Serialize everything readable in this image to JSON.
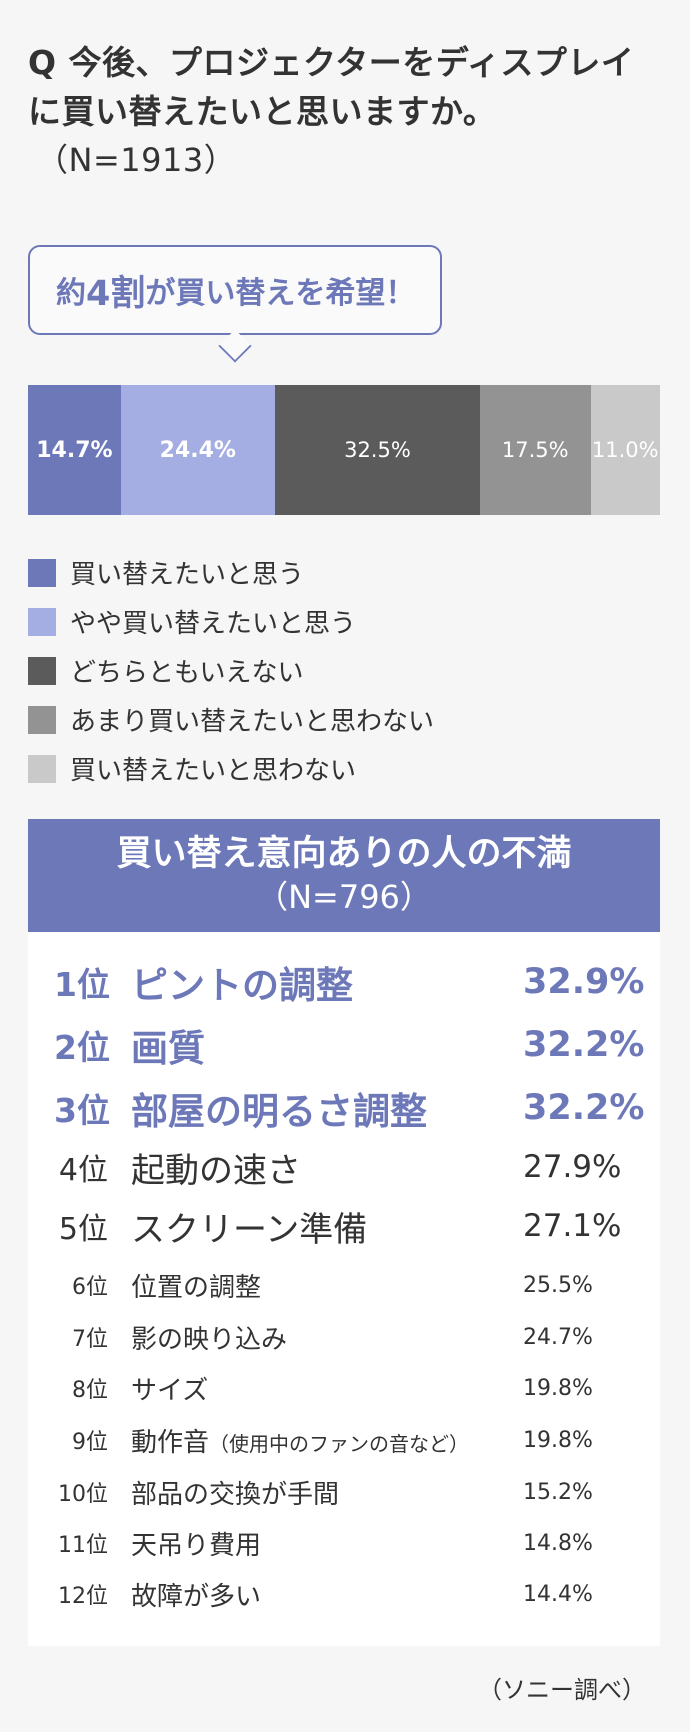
{
  "question": {
    "text": "Q 今後、プロジェクターをディスプレイに買い替えたいと思いますか。",
    "n": "（N=1913）"
  },
  "callout": {
    "pre": "約",
    "big": "4割",
    "post": "が買い替えを希望！"
  },
  "colors": {
    "accent": "#6d78b9",
    "s1": "#6d78b9",
    "s2": "#a4aee2",
    "s3": "#5b5b5b",
    "s4": "#939393",
    "s5": "#c9c9c9"
  },
  "chart_data": {
    "type": "bar",
    "orientation": "stacked-horizontal-100",
    "series": [
      {
        "name": "買い替えたいと思う",
        "value": 14.7,
        "label": "14.7%",
        "color": "#6d78b9"
      },
      {
        "name": "やや買い替えたいと思う",
        "value": 24.4,
        "label": "24.4%",
        "color": "#a4aee2"
      },
      {
        "name": "どちらともいえない",
        "value": 32.5,
        "label": "32.5%",
        "color": "#5b5b5b"
      },
      {
        "name": "あまり買い替えたいと思わない",
        "value": 17.5,
        "label": "17.5%",
        "color": "#939393"
      },
      {
        "name": "買い替えたいと思わない",
        "value": 11.0,
        "label": "11.0%",
        "color": "#c9c9c9"
      }
    ],
    "legend_position": "bottom"
  },
  "ranking": {
    "title": "買い替え意向ありの人の不満",
    "n": "（N=796）",
    "items": [
      {
        "rank": "1位",
        "label": "ピントの調整",
        "note": "",
        "pct": "32.9%",
        "tier": "top"
      },
      {
        "rank": "2位",
        "label": "画質",
        "note": "",
        "pct": "32.2%",
        "tier": "top"
      },
      {
        "rank": "3位",
        "label": "部屋の明るさ調整",
        "note": "",
        "pct": "32.2%",
        "tier": "top"
      },
      {
        "rank": "4位",
        "label": "起動の速さ",
        "note": "",
        "pct": "27.9%",
        "tier": "mid"
      },
      {
        "rank": "5位",
        "label": "スクリーン準備",
        "note": "",
        "pct": "27.1%",
        "tier": "mid"
      },
      {
        "rank": "6位",
        "label": "位置の調整",
        "note": "",
        "pct": "25.5%",
        "tier": "low"
      },
      {
        "rank": "7位",
        "label": "影の映り込み",
        "note": "",
        "pct": "24.7%",
        "tier": "low"
      },
      {
        "rank": "8位",
        "label": "サイズ",
        "note": "",
        "pct": "19.8%",
        "tier": "low"
      },
      {
        "rank": "9位",
        "label": "動作音",
        "note": "（使用中のファンの音など）",
        "pct": "19.8%",
        "tier": "low"
      },
      {
        "rank": "10位",
        "label": "部品の交換が手間",
        "note": "",
        "pct": "15.2%",
        "tier": "low"
      },
      {
        "rank": "11位",
        "label": "天吊り費用",
        "note": "",
        "pct": "14.8%",
        "tier": "low"
      },
      {
        "rank": "12位",
        "label": "故障が多い",
        "note": "",
        "pct": "14.4%",
        "tier": "low"
      }
    ]
  },
  "source": "（ソニー調べ）"
}
